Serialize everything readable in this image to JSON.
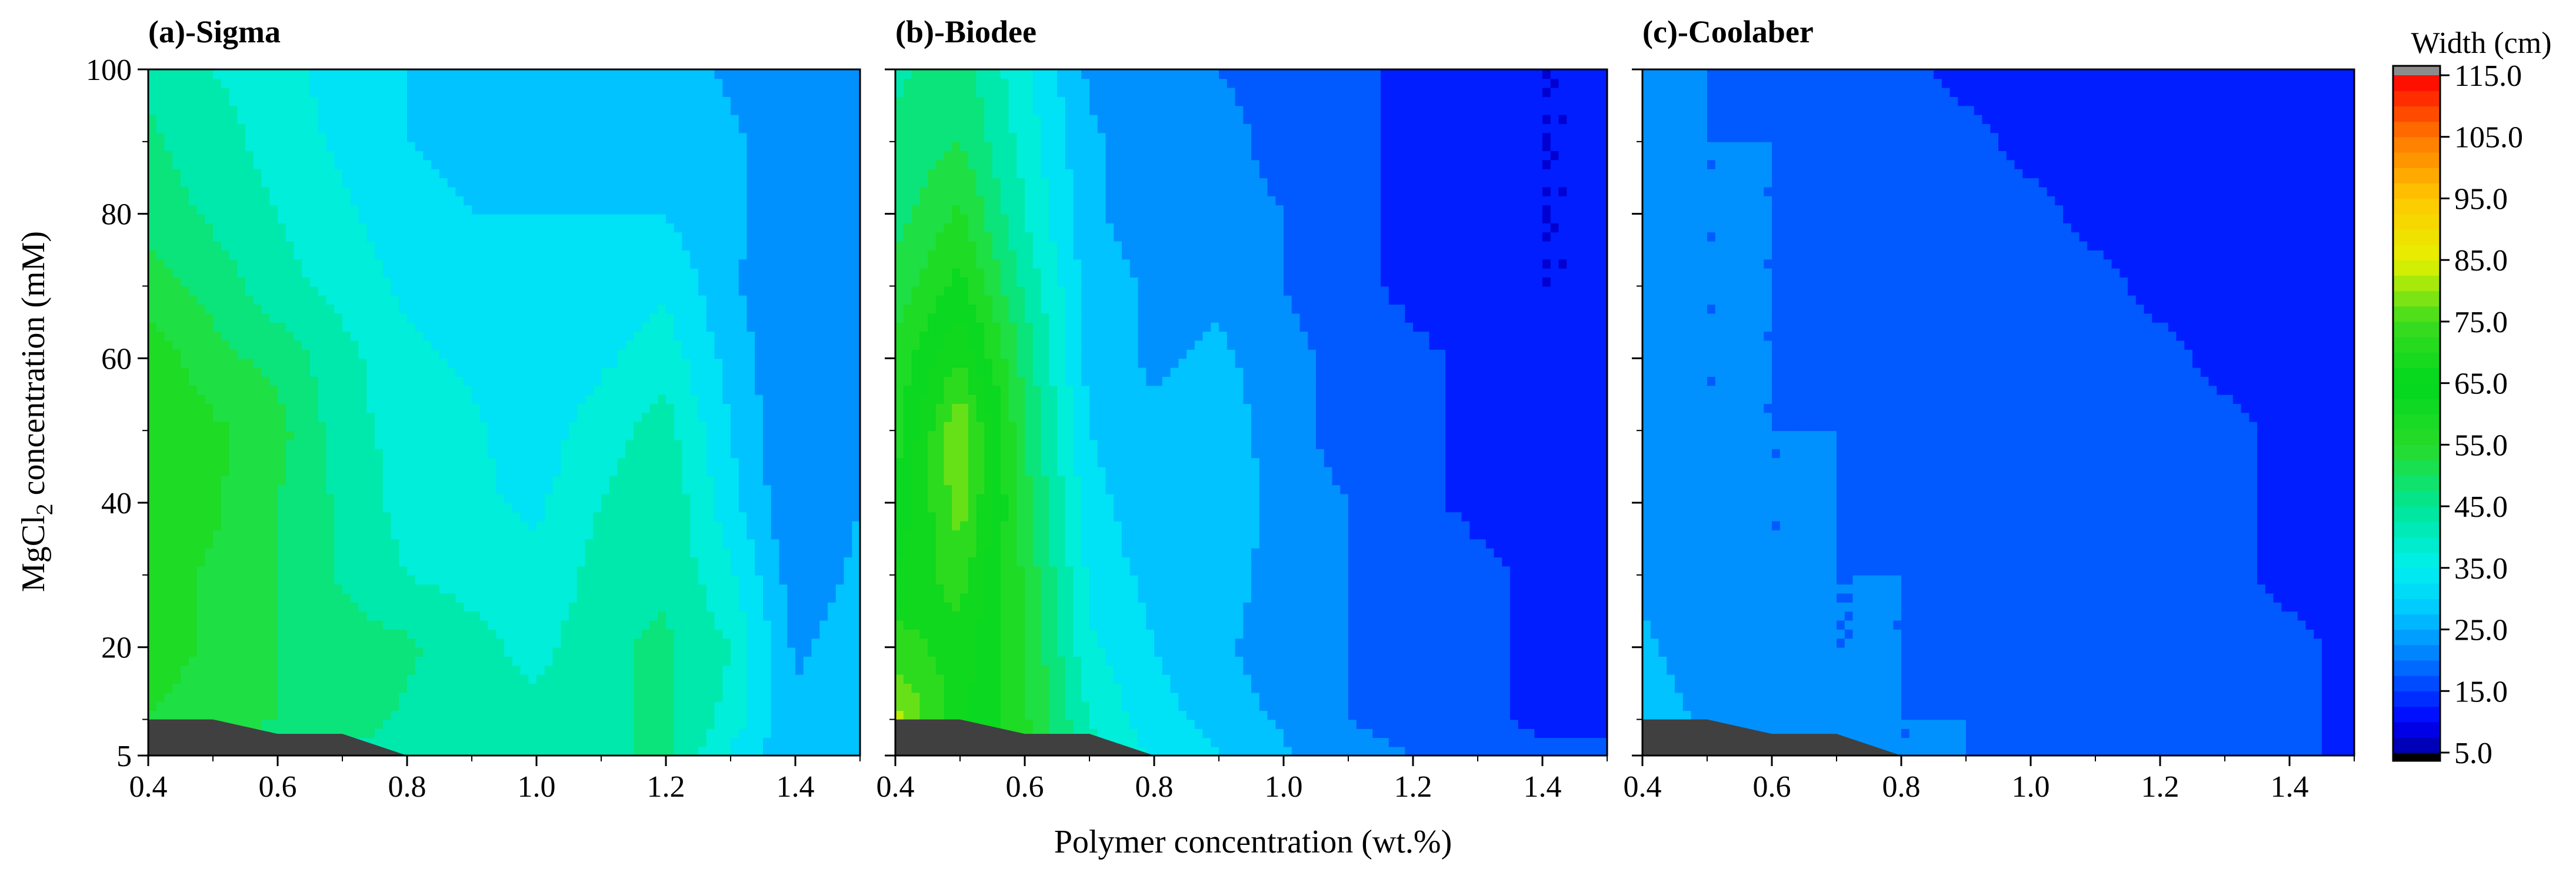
{
  "chart_data": {
    "type": "heatmap",
    "colorbar": {
      "title": "Width (cm)",
      "ticks": [
        "115.0",
        "105.0",
        "95.0",
        "85.0",
        "75.0",
        "65.0",
        "55.0",
        "45.0",
        "35.0",
        "25.0",
        "15.0",
        "5.0"
      ],
      "range": [
        5,
        115
      ],
      "over_color": "#8c8c8c",
      "under_color": "#000000"
    },
    "xlabel": "Polymer concentration (wt.%)",
    "ylabel_main": "MgCl",
    "ylabel_sub": "2",
    "ylabel_tail": " concentration (mM)",
    "x_ticks": [
      "0.4",
      "0.6",
      "0.8",
      "1.0",
      "1.2",
      "1.4"
    ],
    "y_ticks": [
      "100",
      "80",
      "60",
      "40",
      "20",
      "5"
    ],
    "x": [
      0.4,
      0.5,
      0.6,
      0.7,
      0.8,
      0.9,
      1.0,
      1.1,
      1.2,
      1.3,
      1.4,
      1.5
    ],
    "y": [
      5,
      10,
      20,
      30,
      40,
      50,
      60,
      70,
      80,
      90,
      100
    ],
    "xlim": [
      0.4,
      1.5
    ],
    "ylim": [
      5,
      100
    ],
    "panels": [
      {
        "title": "(a)-Sigma",
        "z": [
          [
            48,
            47,
            46,
            44,
            42,
            42,
            44,
            44,
            46,
            34,
            25,
            25
          ],
          [
            55,
            52,
            50,
            48,
            44,
            42,
            42,
            44,
            46,
            38,
            26,
            28
          ],
          [
            58,
            54,
            50,
            48,
            46,
            42,
            38,
            44,
            46,
            40,
            24,
            28
          ],
          [
            58,
            54,
            50,
            44,
            40,
            38,
            36,
            42,
            44,
            36,
            22,
            26
          ],
          [
            60,
            56,
            50,
            44,
            38,
            36,
            34,
            40,
            44,
            32,
            20,
            25
          ],
          [
            60,
            56,
            52,
            42,
            38,
            36,
            32,
            38,
            42,
            30,
            20,
            24
          ],
          [
            58,
            52,
            48,
            42,
            36,
            34,
            30,
            34,
            38,
            28,
            20,
            24
          ],
          [
            52,
            48,
            42,
            38,
            34,
            32,
            30,
            32,
            34,
            26,
            20,
            22
          ],
          [
            48,
            44,
            40,
            36,
            32,
            30,
            30,
            30,
            30,
            26,
            22,
            22
          ],
          [
            46,
            42,
            38,
            34,
            30,
            28,
            30,
            28,
            28,
            26,
            22,
            22
          ],
          [
            44,
            40,
            38,
            32,
            30,
            26,
            30,
            28,
            28,
            24,
            22,
            22
          ]
        ]
      },
      {
        "title": "(b)-Biodee",
        "z": [
          [
            90,
            70,
            56,
            42,
            34,
            30,
            26,
            22,
            20,
            18,
            16,
            16
          ],
          [
            82,
            66,
            56,
            40,
            32,
            28,
            24,
            20,
            18,
            16,
            14,
            14
          ],
          [
            72,
            68,
            56,
            36,
            30,
            26,
            22,
            20,
            18,
            16,
            14,
            12
          ],
          [
            66,
            72,
            54,
            34,
            28,
            28,
            22,
            20,
            18,
            16,
            14,
            12
          ],
          [
            60,
            78,
            52,
            32,
            26,
            30,
            22,
            20,
            16,
            14,
            12,
            12
          ],
          [
            58,
            80,
            50,
            30,
            26,
            28,
            22,
            18,
            16,
            14,
            12,
            10
          ],
          [
            56,
            70,
            48,
            28,
            24,
            26,
            22,
            18,
            16,
            14,
            12,
            10
          ],
          [
            52,
            62,
            44,
            28,
            24,
            24,
            20,
            16,
            14,
            12,
            10,
            10
          ],
          [
            48,
            56,
            40,
            26,
            22,
            22,
            20,
            16,
            14,
            12,
            10,
            10
          ],
          [
            46,
            50,
            38,
            26,
            22,
            22,
            18,
            16,
            14,
            12,
            10,
            10
          ],
          [
            44,
            48,
            36,
            24,
            22,
            20,
            18,
            16,
            14,
            12,
            10,
            10
          ]
        ]
      },
      {
        "title": "(c)-Coolaber",
        "z": [
          [
            30,
            26,
            24,
            22,
            20,
            20,
            18,
            18,
            18,
            18,
            16,
            14
          ],
          [
            28,
            24,
            22,
            22,
            20,
            20,
            18,
            18,
            18,
            18,
            16,
            14
          ],
          [
            26,
            22,
            22,
            20,
            20,
            18,
            18,
            18,
            18,
            16,
            16,
            14
          ],
          [
            24,
            22,
            20,
            20,
            20,
            18,
            18,
            18,
            16,
            16,
            14,
            14
          ],
          [
            24,
            22,
            20,
            20,
            18,
            18,
            18,
            16,
            16,
            16,
            14,
            14
          ],
          [
            22,
            20,
            20,
            20,
            18,
            18,
            16,
            16,
            16,
            16,
            14,
            14
          ],
          [
            22,
            20,
            20,
            18,
            18,
            16,
            16,
            16,
            16,
            14,
            14,
            14
          ],
          [
            22,
            20,
            20,
            18,
            18,
            16,
            16,
            16,
            14,
            14,
            14,
            12
          ],
          [
            22,
            20,
            20,
            18,
            16,
            16,
            16,
            14,
            14,
            14,
            14,
            12
          ],
          [
            22,
            20,
            20,
            18,
            16,
            16,
            14,
            14,
            14,
            14,
            12,
            12
          ],
          [
            22,
            20,
            18,
            18,
            16,
            14,
            14,
            14,
            14,
            14,
            12,
            12
          ]
        ]
      }
    ],
    "masked_region": {
      "description_color": "#404040",
      "boundary": [
        [
          0.4,
          10
        ],
        [
          0.5,
          10
        ],
        [
          0.6,
          8
        ],
        [
          0.7,
          8
        ],
        [
          0.8,
          5
        ],
        [
          0.4,
          5
        ]
      ]
    }
  }
}
